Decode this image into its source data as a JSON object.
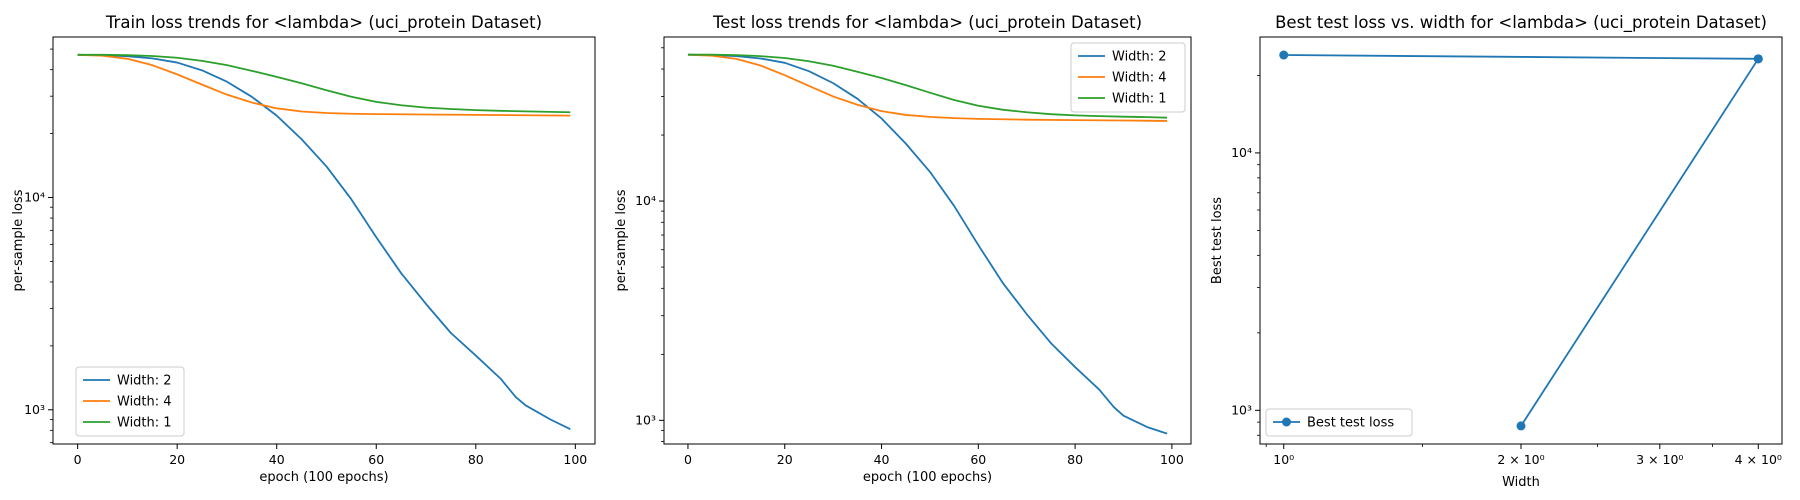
{
  "chart_data": [
    {
      "type": "line",
      "title": "Train loss trends for <lambda> (uci_protein Dataset)",
      "xlabel": "epoch (100 epochs)",
      "ylabel": "per-sample loss",
      "xscale": "linear",
      "yscale": "log",
      "xlim": [
        -4.95,
        103.95
      ],
      "ylim": [
        690,
        57000
      ],
      "xticks": [
        0,
        20,
        40,
        60,
        80,
        100
      ],
      "yticks": [
        {
          "value": 1000,
          "label": "10³"
        },
        {
          "value": 10000,
          "label": "10⁴"
        }
      ],
      "grid": false,
      "legend": "lower-left",
      "series": [
        {
          "name": "Width: 2",
          "color": "#1f77b4",
          "x": [
            0,
            5,
            10,
            15,
            20,
            25,
            30,
            35,
            40,
            45,
            50,
            55,
            60,
            65,
            70,
            75,
            80,
            85,
            88,
            90,
            95,
            99
          ],
          "y": [
            47000,
            46800,
            46300,
            45200,
            43200,
            39700,
            35100,
            29800,
            24300,
            18800,
            14000,
            9800,
            6500,
            4400,
            3150,
            2300,
            1800,
            1400,
            1150,
            1050,
            900,
            810
          ]
        },
        {
          "name": "Width: 4",
          "color": "#ff7f0e",
          "x": [
            0,
            5,
            10,
            15,
            20,
            25,
            30,
            35,
            40,
            45,
            50,
            55,
            60,
            70,
            80,
            90,
            99
          ],
          "y": [
            47000,
            46500,
            45000,
            42000,
            38000,
            34000,
            30500,
            28000,
            26300,
            25400,
            25000,
            24800,
            24700,
            24600,
            24500,
            24400,
            24300
          ]
        },
        {
          "name": "Width: 1",
          "color": "#2ca02c",
          "x": [
            0,
            5,
            10,
            15,
            20,
            25,
            30,
            35,
            40,
            45,
            50,
            55,
            60,
            65,
            70,
            75,
            80,
            85,
            90,
            95,
            99
          ],
          "y": [
            47000,
            47000,
            46800,
            46400,
            45500,
            44000,
            42000,
            39500,
            37000,
            34500,
            32000,
            29800,
            28200,
            27200,
            26500,
            26100,
            25800,
            25600,
            25450,
            25300,
            25200
          ]
        }
      ]
    },
    {
      "type": "line",
      "title": "Test loss trends for <lambda> (uci_protein Dataset)",
      "xlabel": "epoch (100 epochs)",
      "ylabel": "per-sample loss",
      "xscale": "linear",
      "yscale": "log",
      "xlim": [
        -4.95,
        103.95
      ],
      "ylim": [
        780,
        56000
      ],
      "xticks": [
        0,
        20,
        40,
        60,
        80,
        100
      ],
      "yticks": [
        {
          "value": 1000,
          "label": "10³"
        },
        {
          "value": 10000,
          "label": "10⁴"
        }
      ],
      "grid": false,
      "legend": "upper-right",
      "series": [
        {
          "name": "Width: 2",
          "color": "#1f77b4",
          "x": [
            0,
            5,
            10,
            15,
            20,
            25,
            30,
            35,
            40,
            45,
            50,
            55,
            60,
            65,
            70,
            75,
            80,
            85,
            88,
            90,
            95,
            99
          ],
          "y": [
            46500,
            46300,
            45800,
            44700,
            42700,
            39100,
            34500,
            29300,
            23800,
            18300,
            13600,
            9500,
            6300,
            4250,
            3050,
            2250,
            1750,
            1380,
            1150,
            1050,
            930,
            870
          ]
        },
        {
          "name": "Width: 4",
          "color": "#ff7f0e",
          "x": [
            0,
            5,
            10,
            15,
            20,
            25,
            30,
            35,
            40,
            45,
            50,
            55,
            60,
            70,
            80,
            90,
            99
          ],
          "y": [
            46500,
            46000,
            44500,
            41500,
            37500,
            33500,
            30000,
            27500,
            25700,
            24700,
            24200,
            23900,
            23700,
            23500,
            23400,
            23300,
            23200
          ]
        },
        {
          "name": "Width: 1",
          "color": "#2ca02c",
          "x": [
            0,
            5,
            10,
            15,
            20,
            25,
            30,
            35,
            40,
            45,
            50,
            55,
            60,
            65,
            70,
            75,
            80,
            85,
            90,
            95,
            99
          ],
          "y": [
            46500,
            46500,
            46300,
            45800,
            44900,
            43400,
            41400,
            38900,
            36400,
            33800,
            31200,
            28900,
            27200,
            26100,
            25400,
            24900,
            24600,
            24400,
            24250,
            24150,
            24000
          ]
        }
      ]
    },
    {
      "type": "line",
      "title": "Best test loss vs. width for <lambda> (uci_protein Dataset)",
      "xlabel": "Width",
      "ylabel": "Best test loss",
      "xscale": "log",
      "yscale": "log",
      "xlim": [
        0.933,
        4.287
      ],
      "ylim": [
        740,
        28200
      ],
      "xticks": [
        {
          "value": 1,
          "label": "10⁰"
        },
        {
          "value": 2,
          "label": "2 × 10⁰"
        },
        {
          "value": 3,
          "label": "3 × 10⁰"
        },
        {
          "value": 4,
          "label": "4 × 10⁰"
        }
      ],
      "yticks": [
        {
          "value": 1000,
          "label": "10³"
        },
        {
          "value": 10000,
          "label": "10⁴"
        }
      ],
      "grid": false,
      "legend": "lower-left",
      "series": [
        {
          "name": "Best test loss",
          "color": "#1f77b4",
          "marker": "o",
          "x": [
            1,
            4,
            2,
            4
          ],
          "y": [
            24000,
            23200,
            870,
            23200
          ]
        }
      ]
    }
  ]
}
